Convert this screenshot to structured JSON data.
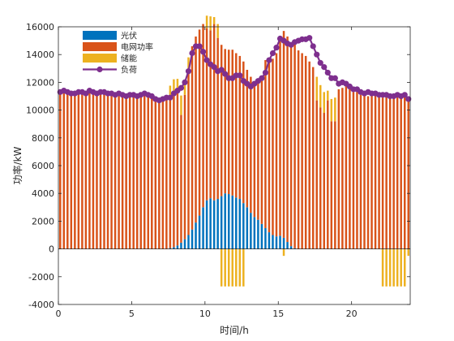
{
  "chart_data": {
    "type": "bar",
    "stacked": true,
    "xlabel": "时间/h",
    "ylabel": "功率/kW",
    "xlim": [
      0,
      24
    ],
    "ylim": [
      -4000,
      16000
    ],
    "xticks": [
      0,
      5,
      10,
      15,
      20
    ],
    "yticks": [
      -4000,
      -2000,
      0,
      2000,
      4000,
      6000,
      8000,
      10000,
      12000,
      14000,
      16000
    ],
    "grid": false,
    "legend_position": "top-left",
    "interval_h": 0.25,
    "series": [
      {
        "name": "光伏",
        "kind": "bar",
        "color": "#0072BD",
        "values": [
          0,
          0,
          0,
          0,
          0,
          0,
          0,
          0,
          0,
          0,
          0,
          0,
          0,
          0,
          0,
          0,
          0,
          0,
          0,
          0,
          0,
          0,
          0,
          0,
          0,
          0,
          0,
          0,
          0,
          0,
          60,
          120,
          250,
          450,
          700,
          1000,
          1400,
          1900,
          2400,
          3000,
          3500,
          3650,
          3500,
          3600,
          3800,
          4000,
          3950,
          3850,
          3700,
          3600,
          3300,
          3000,
          2600,
          2300,
          2100,
          1800,
          1500,
          1200,
          1000,
          900,
          950,
          800,
          500,
          200,
          50,
          0,
          0,
          0,
          0,
          0,
          0,
          0,
          0,
          0,
          0,
          0,
          0,
          0,
          0,
          0,
          0,
          0,
          0,
          0,
          0,
          0,
          0,
          0,
          0,
          0,
          0,
          0,
          0,
          0,
          0,
          0
        ]
      },
      {
        "name": "电网功率",
        "kind": "bar",
        "color": "#D95319",
        "values": [
          11300,
          11400,
          11300,
          11200,
          11200,
          11300,
          11300,
          11200,
          11400,
          11300,
          11200,
          11300,
          11300,
          11200,
          11200,
          11100,
          11200,
          11100,
          11000,
          11100,
          11100,
          11000,
          11100,
          11200,
          11100,
          11000,
          10800,
          10700,
          10800,
          10900,
          10900,
          11200,
          11000,
          9200,
          10400,
          12000,
          13200,
          13400,
          13400,
          13200,
          12400,
          12100,
          12700,
          11600,
          10900,
          10400,
          10400,
          10500,
          10400,
          10300,
          10200,
          9900,
          9800,
          9700,
          10000,
          10300,
          12100,
          12400,
          12700,
          13200,
          14200,
          14900,
          14800,
          14600,
          14700,
          14300,
          14100,
          13900,
          13500,
          13100,
          10700,
          10200,
          9800,
          10700,
          9200,
          9200,
          11500,
          11600,
          11700,
          11500,
          11300,
          11300,
          11100,
          11000,
          11000,
          11000,
          11000,
          11000,
          10900,
          11000,
          11000,
          11000,
          11100,
          11000,
          11000,
          10800
        ]
      },
      {
        "name": "储能",
        "kind": "bar",
        "color": "#EDB120",
        "values": [
          0,
          0,
          0,
          0,
          0,
          0,
          0,
          0,
          0,
          0,
          0,
          0,
          0,
          0,
          0,
          0,
          0,
          0,
          0,
          0,
          0,
          0,
          0,
          0,
          0,
          0,
          0,
          0,
          0,
          0,
          800,
          900,
          1000,
          1400,
          900,
          800,
          0,
          0,
          0,
          0,
          900,
          1000,
          500,
          1000,
          -2700,
          -2700,
          -2700,
          -2700,
          -2700,
          -2700,
          -2700,
          0,
          0,
          0,
          0,
          0,
          0,
          0,
          0,
          0,
          0,
          -500,
          0,
          0,
          0,
          0,
          0,
          0,
          0,
          0,
          1700,
          1600,
          1500,
          700,
          1600,
          1700,
          0,
          0,
          0,
          0,
          0,
          0,
          0,
          0,
          0,
          0,
          0,
          0,
          -2700,
          -2700,
          -2700,
          -2700,
          -2700,
          -2700,
          -2700,
          -500
        ]
      },
      {
        "name": "负荷",
        "kind": "line",
        "color": "#7E2F8E",
        "marker": "circle",
        "values": [
          11300,
          11400,
          11300,
          11200,
          11200,
          11300,
          11300,
          11200,
          11400,
          11300,
          11200,
          11300,
          11300,
          11200,
          11200,
          11100,
          11200,
          11100,
          11000,
          11100,
          11100,
          11000,
          11100,
          11200,
          11100,
          11000,
          10800,
          10700,
          10800,
          10900,
          10900,
          11200,
          11400,
          11600,
          12000,
          12800,
          14100,
          14600,
          14600,
          14200,
          13600,
          13300,
          13100,
          12800,
          12900,
          12600,
          12300,
          12300,
          12500,
          12500,
          12100,
          11900,
          11700,
          11900,
          12100,
          12300,
          12700,
          13600,
          14100,
          14500,
          15150,
          15000,
          14800,
          14700,
          14900,
          15000,
          15100,
          15100,
          15200,
          14600,
          14000,
          13400,
          13100,
          12700,
          12300,
          12300,
          11900,
          12000,
          11900,
          11700,
          11500,
          11500,
          11300,
          11200,
          11300,
          11200,
          11200,
          11100,
          11100,
          11100,
          11000,
          11000,
          11100,
          11000,
          11100,
          10800
        ]
      }
    ]
  }
}
